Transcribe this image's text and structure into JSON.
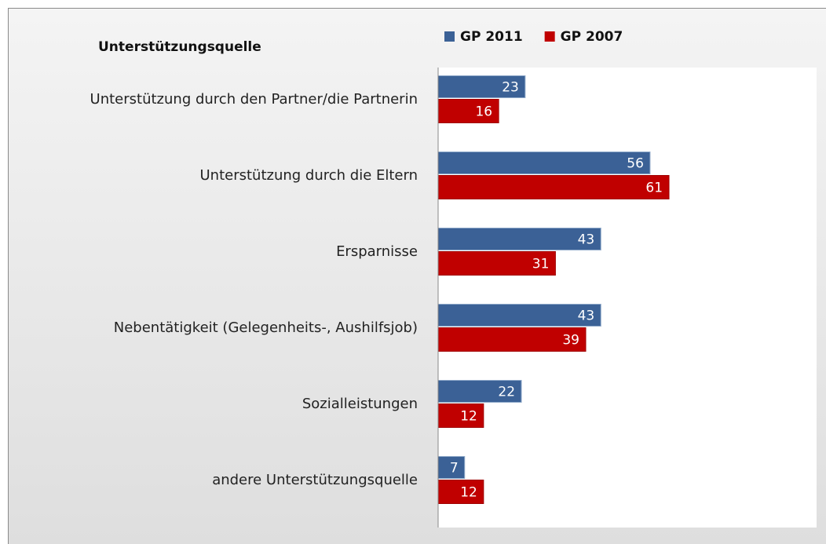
{
  "chart_data": {
    "type": "hbar",
    "y_label": "Unterstützungsquelle",
    "categories": [
      "Unterstützung durch den Partner/die Partnerin",
      "Unterstützung durch die Eltern",
      "Ersparnisse",
      "Nebentätigkeit (Gelegenheits-, Aushilfsjob)",
      "Sozialleistungen",
      "andere Unterstützungsquelle"
    ],
    "series": [
      {
        "name": "GP 2011",
        "color": "#3b6196",
        "values": [
          23,
          56,
          43,
          43,
          22,
          7
        ]
      },
      {
        "name": "GP 2007",
        "color": "#c00000",
        "values": [
          16,
          61,
          31,
          39,
          12,
          12
        ]
      }
    ],
    "xlim": [
      0,
      100
    ],
    "legend": "top"
  }
}
